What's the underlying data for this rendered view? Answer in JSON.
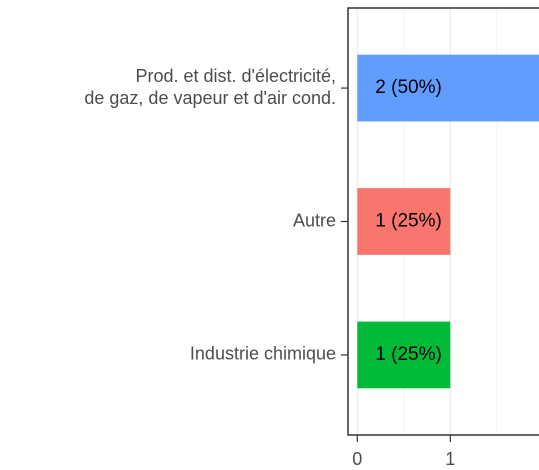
{
  "chart_data": {
    "type": "bar",
    "orientation": "horizontal",
    "categories": [
      "Prod. et dist. d'électricité,\nde gaz, de vapeur et d'air cond.",
      "Autre",
      "Industrie chimique"
    ],
    "values": [
      2,
      1,
      1
    ],
    "value_labels": [
      "2 (50%)",
      "1 (25%)",
      "1 (25%)"
    ],
    "colors": [
      "#619CFF",
      "#F8766D",
      "#00BA38"
    ],
    "xlim": [
      -0.1,
      2.1
    ],
    "xticks": [
      0,
      1,
      2
    ],
    "minor_xticks": [
      0.5,
      1.5
    ],
    "grid": true
  }
}
